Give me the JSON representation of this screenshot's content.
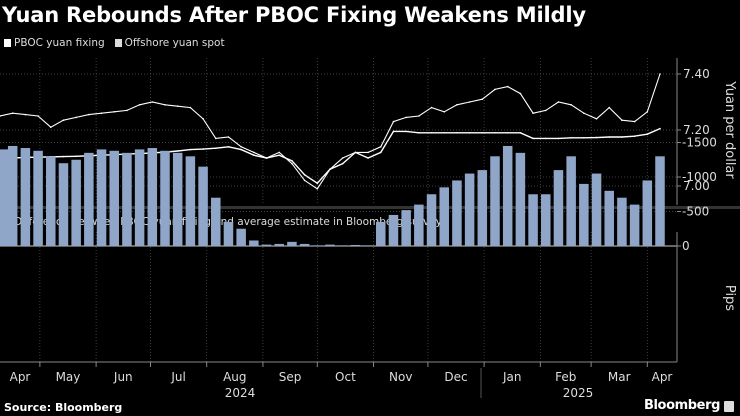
{
  "title": "Yuan Rebounds After PBOC Fixing Weakens Mildly",
  "source": "Source: Bloomberg",
  "brand": "Bloomberg",
  "colors": {
    "background": "#000000",
    "fixing": "#ffffff",
    "spot": "#ffffff",
    "bars": "#8fa6c8",
    "grid": "#555555",
    "axis": "#888888"
  },
  "chart_data": [
    {
      "type": "line",
      "legend": [
        "PBOC yuan fixing",
        "Offshore yuan spot"
      ],
      "legend_placement": "top-left",
      "ylabel": "Yuan per dollar",
      "ylim": [
        6.93,
        7.47
      ],
      "yticks": [
        7.0,
        7.2,
        7.4
      ],
      "ytick_labels": [
        "7.00",
        "7.20",
        "7.40"
      ],
      "grid": true,
      "x": [
        "2024-04-09",
        "2024-04-16",
        "2024-04-23",
        "2024-04-30",
        "2024-05-07",
        "2024-05-14",
        "2024-05-21",
        "2024-05-28",
        "2024-06-04",
        "2024-06-11",
        "2024-06-18",
        "2024-06-25",
        "2024-07-02",
        "2024-07-09",
        "2024-07-16",
        "2024-07-23",
        "2024-07-30",
        "2024-08-06",
        "2024-08-13",
        "2024-08-20",
        "2024-08-27",
        "2024-09-03",
        "2024-09-10",
        "2024-09-17",
        "2024-09-24",
        "2024-10-01",
        "2024-10-08",
        "2024-10-15",
        "2024-10-22",
        "2024-10-29",
        "2024-11-05",
        "2024-11-12",
        "2024-11-19",
        "2024-11-26",
        "2024-12-03",
        "2024-12-10",
        "2024-12-17",
        "2024-12-24",
        "2024-12-31",
        "2025-01-07",
        "2025-01-14",
        "2025-01-21",
        "2025-01-28",
        "2025-02-04",
        "2025-02-11",
        "2025-02-18",
        "2025-02-25",
        "2025-03-04",
        "2025-03-11",
        "2025-03-18",
        "2025-03-25",
        "2025-04-01",
        "2025-04-08"
      ],
      "series": [
        {
          "name": "PBOC yuan fixing",
          "values": [
            7.098,
            7.1,
            7.102,
            7.103,
            7.104,
            7.105,
            7.106,
            7.108,
            7.11,
            7.112,
            7.114,
            7.116,
            7.118,
            7.121,
            7.125,
            7.13,
            7.132,
            7.135,
            7.14,
            7.13,
            7.11,
            7.1,
            7.11,
            7.09,
            7.04,
            7.01,
            7.06,
            7.08,
            7.12,
            7.1,
            7.12,
            7.195,
            7.195,
            7.19,
            7.19,
            7.19,
            7.19,
            7.19,
            7.19,
            7.19,
            7.19,
            7.19,
            7.17,
            7.17,
            7.17,
            7.172,
            7.172,
            7.173,
            7.175,
            7.175,
            7.178,
            7.185,
            7.205
          ]
        },
        {
          "name": "Offshore yuan spot",
          "values": [
            7.25,
            7.26,
            7.255,
            7.25,
            7.21,
            7.235,
            7.245,
            7.255,
            7.26,
            7.265,
            7.27,
            7.29,
            7.3,
            7.29,
            7.285,
            7.28,
            7.24,
            7.17,
            7.175,
            7.14,
            7.12,
            7.1,
            7.12,
            7.08,
            7.02,
            6.99,
            7.06,
            7.1,
            7.12,
            7.12,
            7.14,
            7.23,
            7.245,
            7.25,
            7.28,
            7.265,
            7.29,
            7.3,
            7.31,
            7.345,
            7.355,
            7.33,
            7.26,
            7.27,
            7.3,
            7.29,
            7.26,
            7.24,
            7.28,
            7.235,
            7.23,
            7.265,
            7.4
          ]
        }
      ]
    },
    {
      "type": "bar",
      "legend": [
        "Difference between PBOC yuan fixing and average estimate in Bloomberg surveys"
      ],
      "ylabel": "Pips",
      "ylim": [
        -1700,
        100
      ],
      "yticks": [
        0,
        -500,
        -1000,
        -1500
      ],
      "ytick_labels": [
        "0",
        "-500",
        "-1000",
        "-1500"
      ],
      "grid": true,
      "values": [
        -1400,
        -1450,
        -1420,
        -1380,
        -1300,
        -1200,
        -1250,
        -1350,
        -1400,
        -1380,
        -1350,
        -1400,
        -1420,
        -1380,
        -1350,
        -1300,
        -1150,
        -700,
        -350,
        -250,
        -80,
        -20,
        -30,
        -60,
        -30,
        -10,
        -20,
        -10,
        -15,
        -10,
        -350,
        -450,
        -520,
        -600,
        -750,
        -850,
        -950,
        -1050,
        -1100,
        -1300,
        -1450,
        -1350,
        -750,
        -750,
        -1100,
        -1300,
        -900,
        -1050,
        -800,
        -700,
        -600,
        -950,
        -1300
      ]
    }
  ],
  "xaxis": {
    "months": [
      "Apr",
      "May",
      "Jun",
      "Jul",
      "Aug",
      "Sep",
      "Oct",
      "Nov",
      "Dec",
      "Jan",
      "Feb",
      "Mar",
      "Apr"
    ],
    "years": [
      "2024",
      "2025"
    ]
  }
}
